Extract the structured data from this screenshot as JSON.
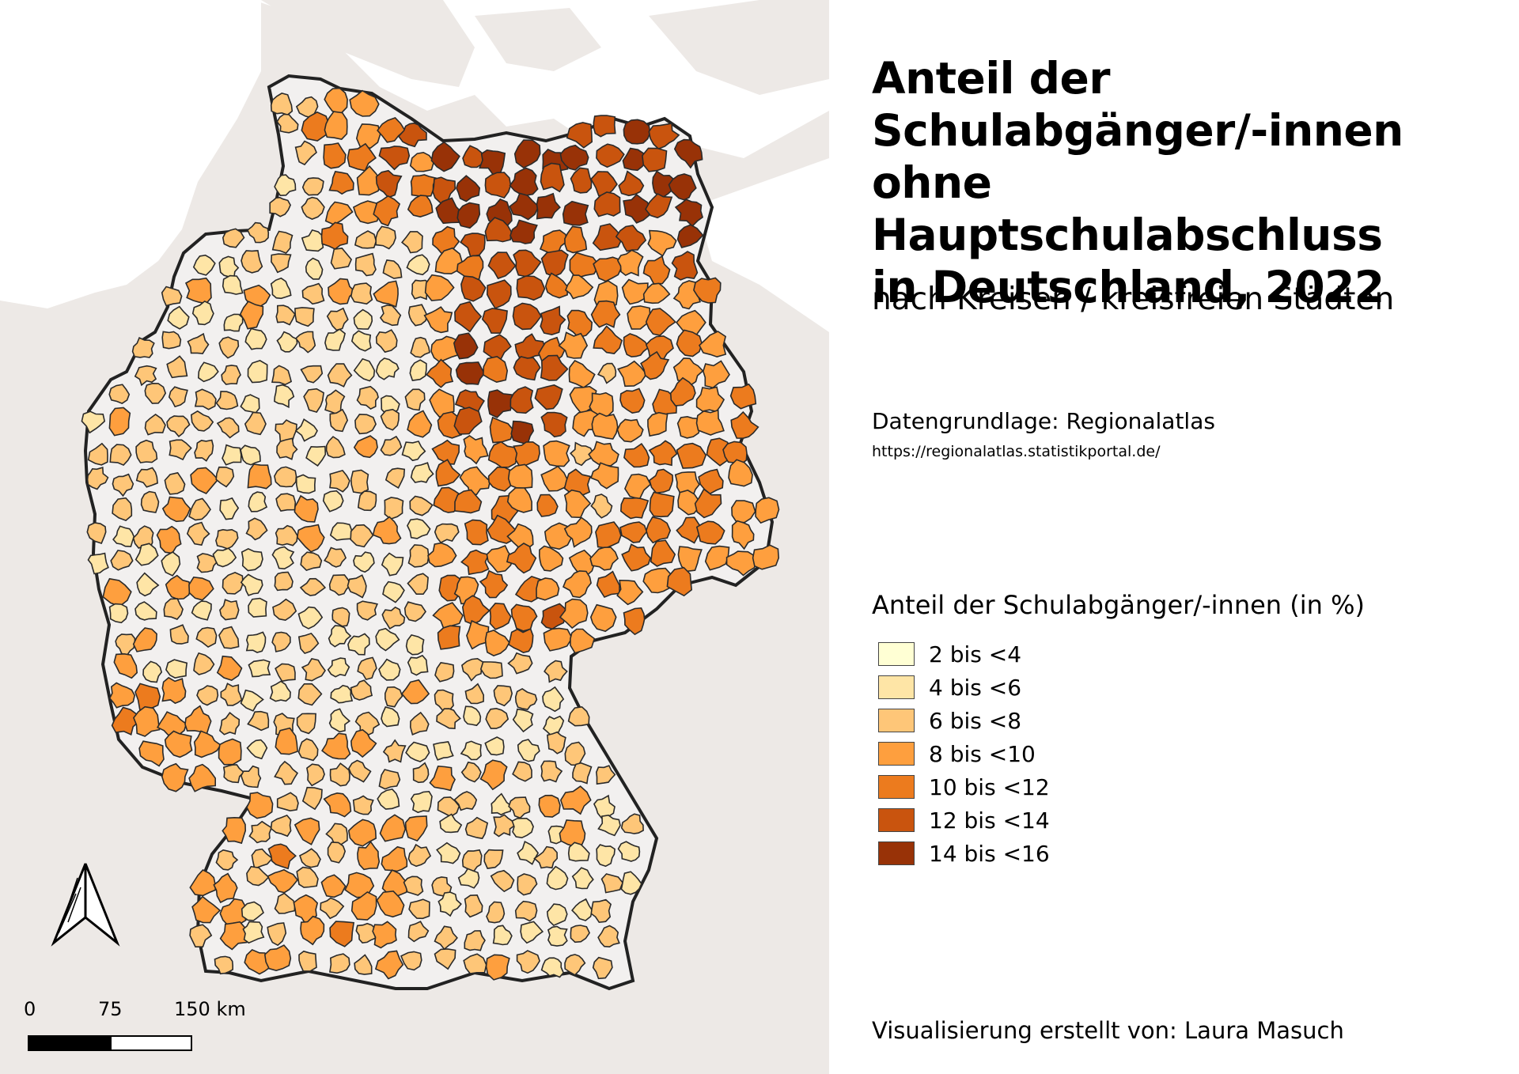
{
  "title_lines": [
    "Anteil der",
    "Schulabgänger/-innen",
    "ohne Hauptschulabschluss",
    "in Deutschland, 2022"
  ],
  "subtitle": "nach Kreisen / kreisfreien Städten",
  "source": {
    "label": "Datengrundlage: Regionalatlas",
    "url": "https://regionalatlas.statistikportal.de/"
  },
  "legend": {
    "title": "Anteil der Schulabgänger/-innen (in %)",
    "items": [
      {
        "label": "2 bis <4",
        "color": "#ffffd4"
      },
      {
        "label": "4 bis <6",
        "color": "#fee5a6"
      },
      {
        "label": "6 bis <8",
        "color": "#fec678"
      },
      {
        "label": "8 bis <10",
        "color": "#fe9f3e"
      },
      {
        "label": "10 bis <12",
        "color": "#ec7b1e"
      },
      {
        "label": "12 bis <14",
        "color": "#c9540e"
      },
      {
        "label": "14 bis <16",
        "color": "#983207"
      }
    ]
  },
  "scale_bar": {
    "labels": [
      "0",
      "75",
      "150 km"
    ]
  },
  "north_arrow": {
    "icon": "north-arrow-icon"
  },
  "credit": "Visualisierung erstellt von: Laura Masuch",
  "colors": {
    "map_background": "#ede9e6",
    "country_fill": "#f2f0ef",
    "water": "#ffffff",
    "border": "#222222"
  }
}
